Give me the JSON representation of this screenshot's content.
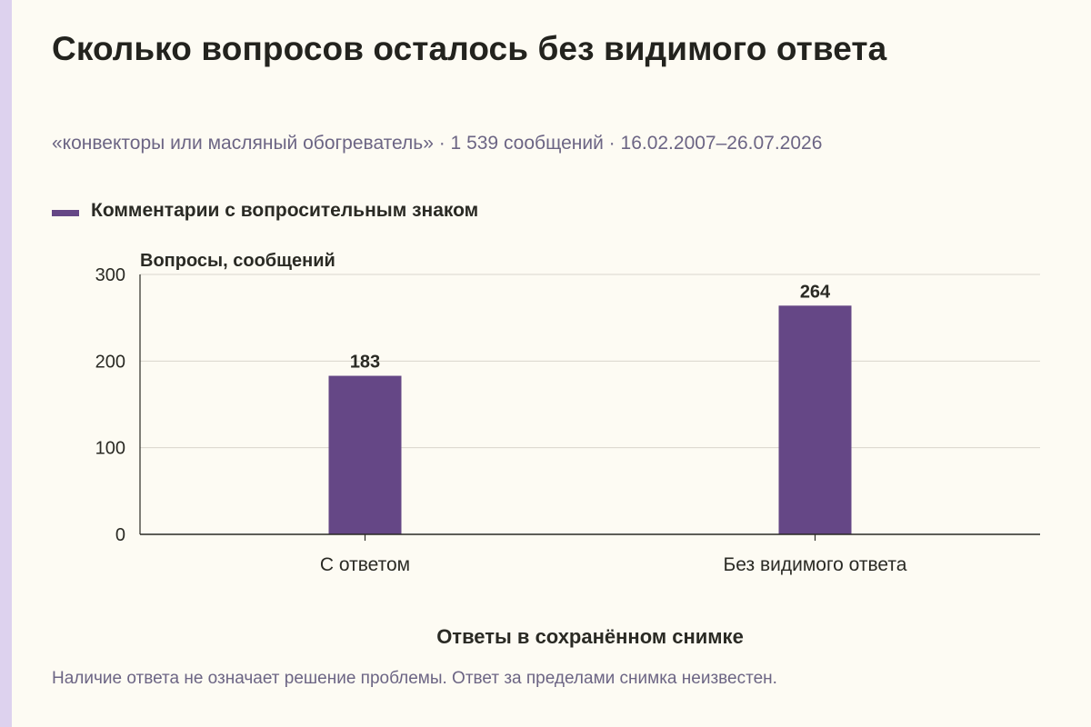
{
  "page": {
    "title": "Сколько вопросов осталось без видимого ответа",
    "subtitle": "«конвекторы или масляный обогреватель» · 1 539 сообщений · 16.02.2007–26.07.2026",
    "footnote": "Наличие ответа не означает решение проблемы. Ответ за пределами снимка неизвестен."
  },
  "colors": {
    "bar": "#654786",
    "background": "#fdfbf3",
    "grid": "#d9d6cc",
    "axis": "#2a2a24",
    "accent_strip": "#ddd2ee"
  },
  "chart_data": {
    "type": "bar",
    "categories": [
      "С ответом",
      "Без видимого ответа"
    ],
    "series": [
      {
        "name": "Комментарии с вопросительным знаком",
        "values": [
          183,
          264
        ]
      }
    ],
    "ylabel": "Вопросы, сообщений",
    "xlabel": "Ответы в сохранённом снимке",
    "ylim": [
      0,
      300
    ],
    "yticks": [
      0,
      100,
      200,
      300
    ],
    "grid": true,
    "legend_position": "top-left"
  }
}
